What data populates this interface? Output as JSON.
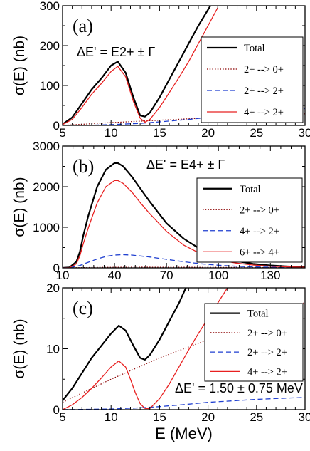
{
  "chart_data": [
    {
      "type": "line",
      "panel_label": "(a)",
      "ylabel": "σ(E) (nb)",
      "xlim": [
        5,
        30
      ],
      "ylim": [
        0,
        300
      ],
      "x_ticks": [
        5,
        10,
        15,
        20,
        25,
        30
      ],
      "y_ticks": [
        0,
        100,
        200,
        300
      ],
      "annotation": "ΔE' = E2+ ± Γ",
      "legend_position": "right",
      "series": [
        {
          "name": "Total",
          "color": "#000000",
          "dash": "solid",
          "width": 2.2,
          "x": [
            5,
            6,
            7,
            8,
            9,
            10,
            10.7,
            11.5,
            12.3,
            13,
            13.5,
            14,
            15,
            16,
            17,
            18,
            19,
            20,
            21
          ],
          "y": [
            3,
            20,
            55,
            90,
            118,
            150,
            160,
            132,
            70,
            25,
            22,
            32,
            70,
            115,
            160,
            205,
            250,
            290,
            330
          ]
        },
        {
          "name": "2+ --> 0+",
          "color": "#8b0000",
          "dash": "dotted",
          "width": 1.2,
          "x": [
            5,
            10,
            15,
            20,
            25,
            30
          ],
          "y": [
            0,
            7,
            13,
            19,
            24,
            29
          ]
        },
        {
          "name": "2+ --> 2+",
          "color": "#1f3fd0",
          "dash": "dashed",
          "width": 1.3,
          "x": [
            5,
            8,
            10,
            13,
            15,
            18,
            20,
            23,
            25,
            28,
            30
          ],
          "y": [
            0,
            0.5,
            2,
            5,
            9,
            15,
            20,
            27,
            32,
            38,
            42
          ]
        },
        {
          "name": "4+ --> 2+",
          "color": "#e82020",
          "dash": "solid",
          "width": 1.3,
          "x": [
            5,
            6,
            7,
            8,
            9,
            10,
            10.7,
            11.5,
            12.3,
            13,
            13.5,
            14,
            15,
            16,
            17,
            18,
            19,
            20,
            21
          ],
          "y": [
            2,
            15,
            45,
            78,
            105,
            135,
            148,
            122,
            60,
            18,
            8,
            15,
            45,
            82,
            120,
            160,
            205,
            250,
            295
          ]
        }
      ]
    },
    {
      "type": "line",
      "panel_label": "(b)",
      "ylabel": "σ(E) (nb)",
      "xlim": [
        10,
        150
      ],
      "ylim": [
        0,
        3000
      ],
      "x_ticks": [
        10,
        40,
        70,
        100,
        130
      ],
      "y_ticks": [
        0,
        1000,
        2000,
        3000
      ],
      "annotation": "ΔE' = E4+ ± Γ",
      "legend_position": "right",
      "series": [
        {
          "name": "Total",
          "color": "#000000",
          "dash": "solid",
          "width": 2.2,
          "x": [
            10,
            14,
            18,
            20,
            22,
            25,
            30,
            35,
            40,
            42,
            45,
            50,
            55,
            60,
            70,
            80,
            90,
            100,
            110,
            120,
            130,
            140,
            150
          ],
          "y": [
            0,
            10,
            150,
            400,
            800,
            1300,
            2000,
            2420,
            2580,
            2580,
            2500,
            2250,
            1950,
            1650,
            1100,
            720,
            450,
            280,
            170,
            100,
            60,
            35,
            20
          ]
        },
        {
          "name": "2+ --> 0+",
          "color": "#8b0000",
          "dash": "dotted",
          "width": 1.2,
          "x": [
            10,
            20,
            30,
            50,
            80,
            110,
            150
          ],
          "y": [
            0,
            5,
            12,
            18,
            15,
            10,
            6
          ]
        },
        {
          "name": "4+ --> 2+",
          "color": "#1f3fd0",
          "dash": "dashed",
          "width": 1.3,
          "x": [
            10,
            15,
            20,
            25,
            30,
            35,
            40,
            45,
            50,
            60,
            70,
            80,
            90,
            100,
            110,
            120,
            130,
            140,
            150
          ],
          "y": [
            0,
            10,
            60,
            140,
            220,
            280,
            315,
            325,
            315,
            270,
            210,
            150,
            100,
            65,
            40,
            25,
            15,
            10,
            5
          ]
        },
        {
          "name": "6+ --> 4+",
          "color": "#e82020",
          "dash": "solid",
          "width": 1.3,
          "x": [
            10,
            14,
            18,
            20,
            22,
            25,
            30,
            35,
            40,
            42,
            45,
            50,
            55,
            60,
            70,
            80,
            90,
            100,
            110,
            120,
            130,
            140,
            150
          ],
          "y": [
            0,
            5,
            100,
            300,
            600,
            1000,
            1600,
            2000,
            2150,
            2150,
            2080,
            1870,
            1600,
            1350,
            900,
            560,
            340,
            200,
            120,
            70,
            40,
            25,
            15
          ]
        }
      ]
    },
    {
      "type": "line",
      "panel_label": "(c)",
      "ylabel": "σ(E) (nb)",
      "xlabel": "E (MeV)",
      "xlim": [
        5,
        30
      ],
      "ylim": [
        0,
        20
      ],
      "x_ticks": [
        5,
        10,
        15,
        20,
        25,
        30
      ],
      "y_ticks": [
        0,
        10,
        20
      ],
      "annotation": "ΔE' = 1.50 ± 0.75 MeV",
      "legend_position": "right",
      "series": [
        {
          "name": "Total",
          "color": "#000000",
          "dash": "solid",
          "width": 2.2,
          "x": [
            5,
            6,
            7,
            8,
            9,
            10,
            10.8,
            11.5,
            12.3,
            13,
            13.5,
            14,
            15,
            16,
            17,
            18
          ],
          "y": [
            1.5,
            3.5,
            6,
            8.5,
            10.5,
            12.5,
            13.8,
            13,
            10.5,
            8.5,
            8.2,
            9,
            11.5,
            14.5,
            17.5,
            21
          ]
        },
        {
          "name": "2+ --> 0+",
          "color": "#8b0000",
          "dash": "dotted",
          "width": 1.2,
          "x": [
            5,
            10,
            15,
            20,
            25,
            30
          ],
          "y": [
            1.2,
            5,
            8.5,
            11.5,
            14.8,
            17.6
          ]
        },
        {
          "name": "2+ --> 2+",
          "color": "#1f3fd0",
          "dash": "dashed",
          "width": 1.3,
          "x": [
            5,
            10,
            13,
            15,
            18,
            20,
            23,
            25,
            28,
            30
          ],
          "y": [
            0,
            0.1,
            0.3,
            0.5,
            0.9,
            1.2,
            1.5,
            1.7,
            1.9,
            2.0
          ]
        },
        {
          "name": "4+ --> 2+",
          "color": "#e82020",
          "dash": "solid",
          "width": 1.3,
          "x": [
            5,
            6,
            7,
            8,
            9,
            10,
            10.8,
            11.5,
            12,
            12.5,
            13,
            13.5,
            14,
            15,
            16,
            17,
            18,
            19,
            20,
            21,
            22
          ],
          "y": [
            0,
            0.8,
            2,
            3.5,
            5.2,
            7,
            8,
            7,
            5,
            2.8,
            1,
            0.2,
            0.2,
            1.8,
            4.2,
            7,
            9.8,
            12.5,
            15,
            17.5,
            20
          ]
        }
      ]
    }
  ]
}
